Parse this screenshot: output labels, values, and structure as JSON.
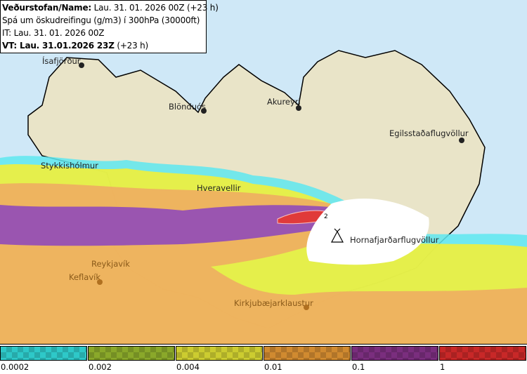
{
  "info": {
    "line1_bold": "Veðurstofan/Name:",
    "line1_rest": " Lau. 31. 01. 2026 00Z (+23 h)",
    "line2": "Spá um öskudreifingu (g/m3) í 300hPa (30000ft)",
    "line3": "IT: Lau. 31. 01. 2026 00Z",
    "line4_bold": "VT: Lau. 31.01.2026 23Z",
    "line4_rest": " (+23 h)"
  },
  "cities": [
    {
      "name": "Ísafjörður",
      "marker": "dot"
    },
    {
      "name": "Blönduós",
      "marker": "dot"
    },
    {
      "name": "Akureyri",
      "marker": "dot"
    },
    {
      "name": "Egilsstaðaflugvöllur",
      "marker": "dot"
    },
    {
      "name": "Stykkishólmur",
      "marker": "none"
    },
    {
      "name": "Hveravellir",
      "marker": "none"
    },
    {
      "name": "Reykjavík",
      "marker": "none"
    },
    {
      "name": "Keflavík",
      "marker": "dot"
    },
    {
      "name": "Kirkjubæjarklaustur",
      "marker": "dot"
    },
    {
      "name": "Hornafjarðarflugvöllur",
      "marker": "volcano-icon"
    }
  ],
  "peak_label": "2",
  "legend": {
    "labels": [
      "0.0002",
      "0.002",
      "0.004",
      "0.01",
      "0.1",
      "1"
    ],
    "colors": [
      "#2ec8c8",
      "#8aa82a",
      "#cccc30",
      "#d08a30",
      "#7a2e7e",
      "#c82828"
    ]
  },
  "colors": {
    "sea": "#cfe8f7",
    "land": "#e9e4c8",
    "glacier": "#ffffff",
    "ash_orange": "#eeb060",
    "ash_purple": "#9a55b0",
    "ash_yellow": "#f2f03a",
    "ash_cyan": "#5ee8f0",
    "ash_red": "#e03a3a"
  }
}
